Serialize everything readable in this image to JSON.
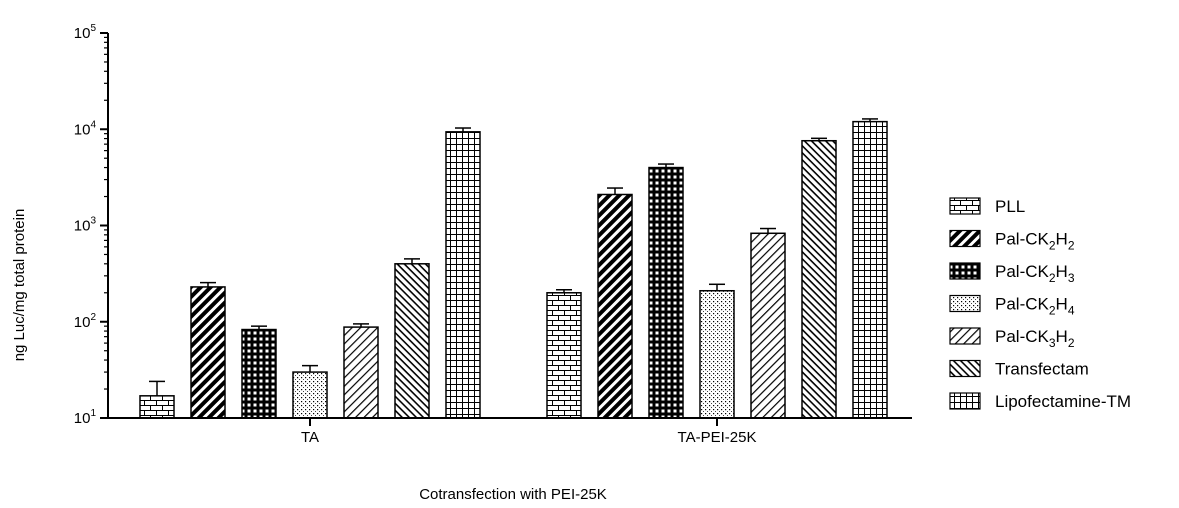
{
  "chart_data": {
    "type": "bar",
    "y_scale": "log",
    "ylim": [
      10,
      100000
    ],
    "ylabel": "ng Luc/mg total protein",
    "xlabel": "Cotransfection with PEI-25K",
    "categories": [
      "TA",
      "TA-PEI-25K"
    ],
    "y_ticks": [
      {
        "base": "10",
        "exp": "1"
      },
      {
        "base": "10",
        "exp": "2"
      },
      {
        "base": "10",
        "exp": "3"
      },
      {
        "base": "10",
        "exp": "4"
      },
      {
        "base": "10",
        "exp": "5"
      }
    ],
    "legend_position": "right",
    "series": [
      {
        "name": "PLL",
        "label": [
          {
            "t": "PLL"
          }
        ],
        "pattern": "brick",
        "values": [
          17,
          200
        ],
        "errors": [
          24,
          215
        ]
      },
      {
        "name": "Pal-CK2H2",
        "label": [
          {
            "t": "Pal-CK"
          },
          {
            "t": "2",
            "sub": true
          },
          {
            "t": "H"
          },
          {
            "t": "2",
            "sub": true
          }
        ],
        "pattern": "thick-diag",
        "values": [
          230,
          2100
        ],
        "errors": [
          255,
          2450
        ]
      },
      {
        "name": "Pal-CK2H3",
        "label": [
          {
            "t": "Pal-CK"
          },
          {
            "t": "2",
            "sub": true
          },
          {
            "t": "H"
          },
          {
            "t": "3",
            "sub": true
          }
        ],
        "pattern": "black-grid",
        "values": [
          83,
          4000
        ],
        "errors": [
          90,
          4350
        ]
      },
      {
        "name": "Pal-CK2H4",
        "label": [
          {
            "t": "Pal-CK"
          },
          {
            "t": "2",
            "sub": true
          },
          {
            "t": "H"
          },
          {
            "t": "4",
            "sub": true
          }
        ],
        "pattern": "dots",
        "values": [
          30,
          210
        ],
        "errors": [
          35,
          245
        ]
      },
      {
        "name": "Pal-CK3H2",
        "label": [
          {
            "t": "Pal-CK"
          },
          {
            "t": "3",
            "sub": true
          },
          {
            "t": "H"
          },
          {
            "t": "2",
            "sub": true
          }
        ],
        "pattern": "thin-diag",
        "values": [
          88,
          830
        ],
        "errors": [
          95,
          930
        ]
      },
      {
        "name": "Transfectam",
        "label": [
          {
            "t": "Transfectam"
          }
        ],
        "pattern": "back-diag",
        "values": [
          400,
          7600
        ],
        "errors": [
          450,
          8050
        ]
      },
      {
        "name": "Lipofectamine-TM",
        "label": [
          {
            "t": "Lipofectamine-TM"
          }
        ],
        "pattern": "fine-grid",
        "values": [
          9400,
          12000
        ],
        "errors": [
          10300,
          12800
        ]
      }
    ]
  }
}
